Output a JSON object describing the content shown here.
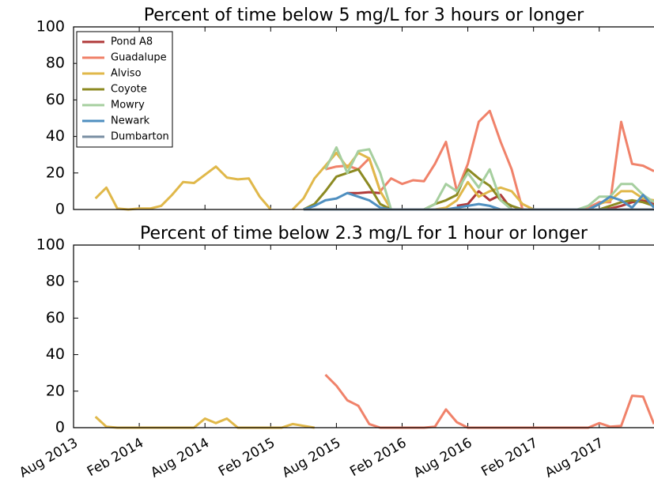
{
  "chart_data": [
    {
      "type": "line",
      "title": "Percent of time below 5 mg/L for 3 hours or longer",
      "x": [
        "2013-08",
        "2013-09",
        "2013-10",
        "2013-11",
        "2013-12",
        "2014-01",
        "2014-02",
        "2014-03",
        "2014-04",
        "2014-05",
        "2014-06",
        "2014-07",
        "2014-08",
        "2014-09",
        "2014-10",
        "2014-11",
        "2014-12",
        "2015-01",
        "2015-02",
        "2015-03",
        "2015-04",
        "2015-05",
        "2015-06",
        "2015-07",
        "2015-08",
        "2015-09",
        "2015-10",
        "2015-11",
        "2015-12",
        "2016-01",
        "2016-02",
        "2016-03",
        "2016-04",
        "2016-05",
        "2016-06",
        "2016-07",
        "2016-08",
        "2016-09",
        "2016-10",
        "2016-11",
        "2016-12",
        "2017-01",
        "2017-02",
        "2017-03",
        "2017-04",
        "2017-05",
        "2017-06",
        "2017-07",
        "2017-08",
        "2017-09",
        "2017-10",
        "2017-11",
        "2017-12",
        "2018-01"
      ],
      "xlim": [
        "2013-08",
        "2018-01"
      ],
      "xticks": [
        "2013-08",
        "2014-02",
        "2014-08",
        "2015-02",
        "2015-08",
        "2016-02",
        "2016-08",
        "2017-02",
        "2017-08"
      ],
      "ylim": [
        0,
        100
      ],
      "yticks": [
        0,
        20,
        40,
        60,
        80,
        100
      ],
      "legend": "upper left",
      "series": [
        {
          "name": "Pond A8",
          "color": "#b03a3a",
          "values": [
            null,
            null,
            null,
            null,
            null,
            null,
            null,
            null,
            null,
            null,
            null,
            null,
            null,
            null,
            null,
            null,
            null,
            null,
            null,
            null,
            null,
            null,
            null,
            null,
            null,
            9,
            9,
            9.5,
            9,
            null,
            null,
            null,
            null,
            null,
            null,
            2,
            3,
            10,
            5,
            8,
            0,
            null,
            null,
            null,
            null,
            null,
            null,
            0,
            0,
            0.5,
            2,
            4,
            5,
            3
          ]
        },
        {
          "name": "Guadalupe",
          "color": "#f0826a",
          "values": [
            null,
            null,
            null,
            null,
            null,
            null,
            null,
            null,
            null,
            null,
            null,
            null,
            null,
            null,
            null,
            null,
            null,
            null,
            null,
            null,
            null,
            null,
            null,
            22,
            23.5,
            24,
            22,
            28,
            10,
            17,
            14,
            16,
            15.5,
            25,
            37,
            10,
            25,
            48,
            54,
            37,
            22,
            0,
            0,
            0,
            0,
            0,
            0,
            1,
            4,
            4,
            48,
            25,
            24,
            21
          ]
        },
        {
          "name": "Alviso",
          "color": "#e0b84a",
          "values": [
            null,
            null,
            6,
            12,
            0.5,
            0,
            0.5,
            0.5,
            2,
            8,
            15,
            14.5,
            19,
            23.5,
            17.5,
            16.5,
            17,
            7,
            0,
            null,
            0,
            6,
            17,
            24,
            31,
            23,
            31,
            28,
            10,
            0,
            0,
            0,
            0,
            0,
            1,
            5,
            15,
            7,
            10,
            12,
            10,
            3,
            0,
            0,
            0,
            0,
            0,
            0,
            3,
            5,
            10,
            10,
            6,
            5
          ]
        },
        {
          "name": "Coyote",
          "color": "#8c8a22",
          "values": [
            null,
            null,
            null,
            null,
            null,
            null,
            null,
            null,
            null,
            null,
            null,
            null,
            null,
            null,
            null,
            null,
            null,
            null,
            null,
            null,
            null,
            0,
            3,
            10,
            18,
            20,
            22,
            13,
            3,
            0,
            0,
            0,
            0,
            3,
            5,
            8,
            22,
            17,
            13,
            5,
            2,
            0,
            null,
            null,
            null,
            null,
            null,
            0,
            0,
            2,
            4,
            5,
            4,
            2
          ]
        },
        {
          "name": "Mowry",
          "color": "#a6cf9f",
          "values": [
            null,
            null,
            null,
            null,
            null,
            null,
            null,
            null,
            null,
            null,
            null,
            null,
            null,
            null,
            null,
            null,
            null,
            null,
            null,
            null,
            null,
            null,
            null,
            22,
            34,
            20,
            32,
            33,
            20,
            0,
            0,
            0,
            0,
            3,
            14,
            10,
            20,
            12,
            22,
            5,
            0,
            0,
            null,
            null,
            null,
            null,
            0,
            2,
            7,
            7,
            14,
            14,
            8,
            4
          ]
        },
        {
          "name": "Newark",
          "color": "#4f8fc0",
          "values": [
            null,
            null,
            null,
            null,
            null,
            null,
            null,
            null,
            null,
            null,
            null,
            null,
            null,
            null,
            null,
            null,
            null,
            null,
            null,
            null,
            null,
            0,
            2,
            5,
            6,
            9,
            7,
            5,
            1,
            0,
            0,
            0,
            0,
            0,
            0,
            1,
            2,
            3,
            2,
            0,
            0,
            0,
            null,
            null,
            null,
            null,
            null,
            0,
            3,
            7,
            5,
            1,
            8,
            1
          ]
        },
        {
          "name": "Dumbarton",
          "color": "#7a8fa3",
          "values": [
            null,
            null,
            null,
            null,
            null,
            null,
            null,
            null,
            null,
            null,
            null,
            null,
            null,
            null,
            null,
            null,
            null,
            null,
            null,
            null,
            null,
            0,
            0,
            0,
            0,
            0,
            0,
            0,
            0,
            0,
            0,
            0,
            0,
            0,
            0,
            0,
            0,
            0,
            0,
            0,
            0,
            0,
            0,
            0,
            0,
            0,
            0,
            0,
            0,
            0,
            0,
            0,
            0,
            0
          ]
        }
      ]
    },
    {
      "type": "line",
      "title": "Percent of time below 2.3 mg/L for 1 hour or longer",
      "x": [
        "2013-08",
        "2013-09",
        "2013-10",
        "2013-11",
        "2013-12",
        "2014-01",
        "2014-02",
        "2014-03",
        "2014-04",
        "2014-05",
        "2014-06",
        "2014-07",
        "2014-08",
        "2014-09",
        "2014-10",
        "2014-11",
        "2014-12",
        "2015-01",
        "2015-02",
        "2015-03",
        "2015-04",
        "2015-05",
        "2015-06",
        "2015-07",
        "2015-08",
        "2015-09",
        "2015-10",
        "2015-11",
        "2015-12",
        "2016-01",
        "2016-02",
        "2016-03",
        "2016-04",
        "2016-05",
        "2016-06",
        "2016-07",
        "2016-08",
        "2016-09",
        "2016-10",
        "2016-11",
        "2016-12",
        "2017-01",
        "2017-02",
        "2017-03",
        "2017-04",
        "2017-05",
        "2017-06",
        "2017-07",
        "2017-08",
        "2017-09",
        "2017-10",
        "2017-11",
        "2017-12",
        "2018-01"
      ],
      "xlim": [
        "2013-08",
        "2018-01"
      ],
      "xticks": [
        {
          "value": "2013-08",
          "label": "Aug 2013"
        },
        {
          "value": "2014-02",
          "label": "Feb 2014"
        },
        {
          "value": "2014-08",
          "label": "Aug 2014"
        },
        {
          "value": "2015-02",
          "label": "Feb 2015"
        },
        {
          "value": "2015-08",
          "label": "Aug 2015"
        },
        {
          "value": "2016-02",
          "label": "Feb 2016"
        },
        {
          "value": "2016-08",
          "label": "Aug 2016"
        },
        {
          "value": "2017-02",
          "label": "Feb 2017"
        },
        {
          "value": "2017-08",
          "label": "Aug 2017"
        }
      ],
      "ylim": [
        0,
        100
      ],
      "yticks": [
        0,
        20,
        40,
        60,
        80,
        100
      ],
      "series": [
        {
          "name": "Guadalupe",
          "color": "#f0826a",
          "values": [
            null,
            null,
            null,
            null,
            null,
            null,
            null,
            null,
            null,
            null,
            null,
            null,
            null,
            null,
            null,
            null,
            null,
            null,
            null,
            null,
            null,
            null,
            null,
            29,
            23,
            15,
            12,
            2,
            0,
            0,
            0,
            0,
            0,
            0.5,
            10,
            3,
            0,
            0,
            0,
            0,
            0,
            0,
            0,
            0,
            0,
            0,
            0,
            0,
            2.5,
            0.5,
            1,
            17.5,
            17,
            2
          ]
        },
        {
          "name": "Alviso",
          "color": "#e0b84a",
          "values": [
            null,
            null,
            6,
            0.5,
            0,
            0,
            0,
            0,
            0,
            0,
            0,
            0,
            5,
            2.5,
            5,
            0,
            0,
            0,
            0,
            0,
            2,
            1,
            0,
            null,
            null,
            null,
            null,
            null,
            null,
            null,
            null,
            null,
            null,
            null,
            null,
            null,
            null,
            null,
            null,
            null,
            null,
            null,
            null,
            null,
            null,
            null,
            null,
            null,
            null,
            null,
            null,
            null,
            null,
            null
          ]
        }
      ]
    }
  ]
}
